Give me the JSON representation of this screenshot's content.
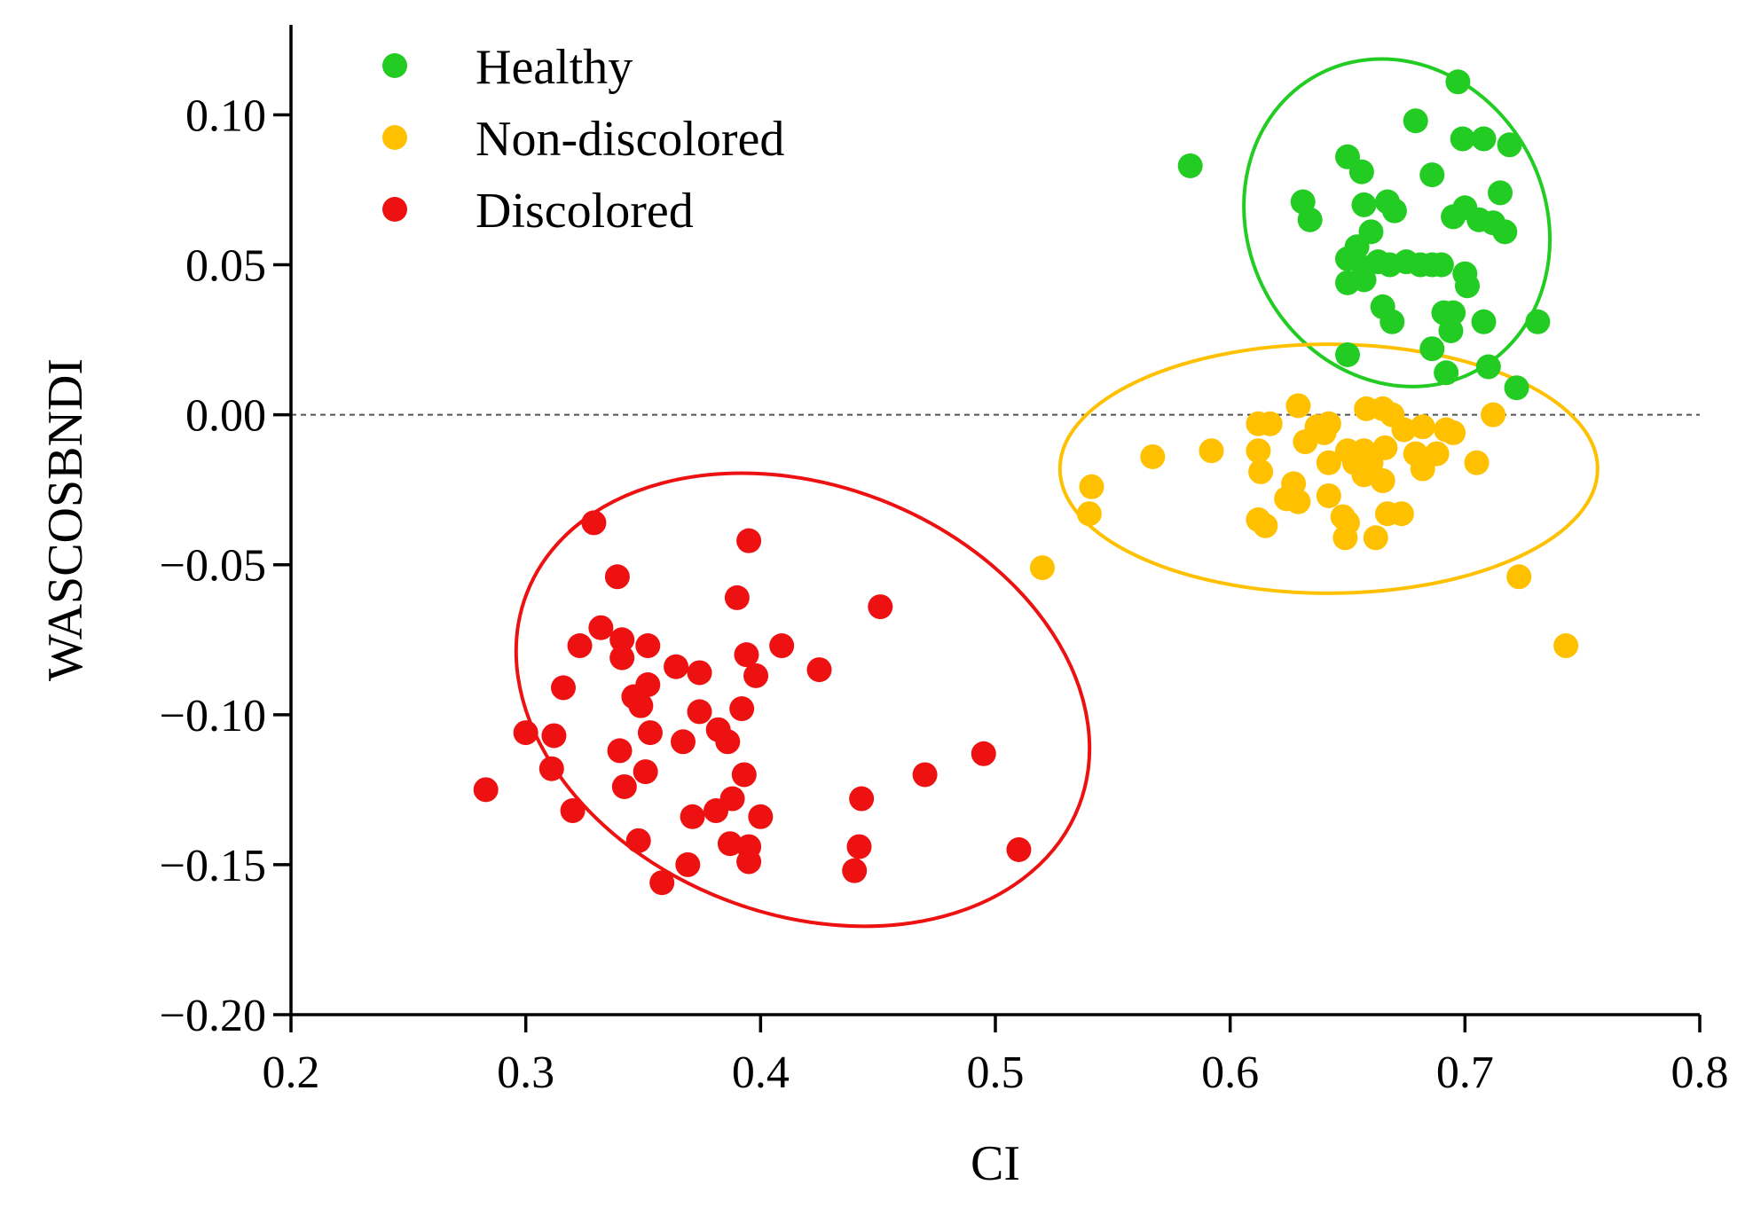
{
  "chart_data": {
    "type": "scatter",
    "xlabel": "CI",
    "ylabel": "WASCOSBNDI",
    "xlim": [
      0.2,
      0.8
    ],
    "ylim": [
      -0.2,
      0.13
    ],
    "xticks": [
      0.2,
      0.3,
      0.4,
      0.5,
      0.6,
      0.7,
      0.8
    ],
    "xtick_labels": [
      "0.2",
      "0.3",
      "0.4",
      "0.5",
      "0.6",
      "0.7",
      "0.8"
    ],
    "yticks": [
      0.1,
      0.05,
      0.0,
      -0.05,
      -0.1,
      -0.15,
      -0.2
    ],
    "ytick_labels": [
      "0.10",
      "0.05",
      "0.00",
      "−0.05",
      "−0.10",
      "−0.15",
      "−0.20"
    ],
    "reference_line_y": 0.0,
    "legend_position": "top-left",
    "series": [
      {
        "name": "Healthy",
        "color": "#22cc22",
        "ellipse": {
          "cx": 0.671,
          "cy": 0.064,
          "rx": 0.0715,
          "ry": 0.0495,
          "rotate_deg": 62
        },
        "points": [
          [
            0.583,
            0.083
          ],
          [
            0.697,
            0.111
          ],
          [
            0.679,
            0.098
          ],
          [
            0.65,
            0.086
          ],
          [
            0.656,
            0.081
          ],
          [
            0.686,
            0.08
          ],
          [
            0.699,
            0.092
          ],
          [
            0.708,
            0.092
          ],
          [
            0.719,
            0.09
          ],
          [
            0.631,
            0.071
          ],
          [
            0.634,
            0.065
          ],
          [
            0.657,
            0.07
          ],
          [
            0.667,
            0.071
          ],
          [
            0.67,
            0.068
          ],
          [
            0.7,
            0.069
          ],
          [
            0.695,
            0.066
          ],
          [
            0.706,
            0.065
          ],
          [
            0.715,
            0.074
          ],
          [
            0.712,
            0.064
          ],
          [
            0.717,
            0.061
          ],
          [
            0.66,
            0.061
          ],
          [
            0.654,
            0.056
          ],
          [
            0.65,
            0.052
          ],
          [
            0.657,
            0.049
          ],
          [
            0.663,
            0.051
          ],
          [
            0.668,
            0.05
          ],
          [
            0.675,
            0.051
          ],
          [
            0.681,
            0.05
          ],
          [
            0.686,
            0.05
          ],
          [
            0.69,
            0.05
          ],
          [
            0.7,
            0.047
          ],
          [
            0.701,
            0.043
          ],
          [
            0.65,
            0.044
          ],
          [
            0.657,
            0.045
          ],
          [
            0.665,
            0.036
          ],
          [
            0.669,
            0.031
          ],
          [
            0.691,
            0.034
          ],
          [
            0.695,
            0.034
          ],
          [
            0.694,
            0.028
          ],
          [
            0.708,
            0.031
          ],
          [
            0.731,
            0.031
          ],
          [
            0.65,
            0.02
          ],
          [
            0.686,
            0.022
          ],
          [
            0.692,
            0.014
          ],
          [
            0.71,
            0.016
          ],
          [
            0.722,
            0.009
          ]
        ]
      },
      {
        "name": "Non-discolored",
        "color": "#ffc000",
        "ellipse": {
          "cx": 0.642,
          "cy": -0.018,
          "rx": 0.1145,
          "ry": 0.0415,
          "rotate_deg": 0
        },
        "points": [
          [
            0.629,
            0.003
          ],
          [
            0.658,
            0.002
          ],
          [
            0.665,
            0.002
          ],
          [
            0.669,
            0.0
          ],
          [
            0.712,
            0.0
          ],
          [
            0.612,
            -0.003
          ],
          [
            0.617,
            -0.003
          ],
          [
            0.637,
            -0.004
          ],
          [
            0.642,
            -0.003
          ],
          [
            0.632,
            -0.009
          ],
          [
            0.64,
            -0.006
          ],
          [
            0.674,
            -0.005
          ],
          [
            0.682,
            -0.004
          ],
          [
            0.692,
            -0.005
          ],
          [
            0.695,
            -0.006
          ],
          [
            0.567,
            -0.014
          ],
          [
            0.592,
            -0.012
          ],
          [
            0.612,
            -0.012
          ],
          [
            0.642,
            -0.016
          ],
          [
            0.65,
            -0.012
          ],
          [
            0.657,
            -0.012
          ],
          [
            0.66,
            -0.016
          ],
          [
            0.666,
            -0.011
          ],
          [
            0.679,
            -0.013
          ],
          [
            0.682,
            -0.018
          ],
          [
            0.688,
            -0.013
          ],
          [
            0.705,
            -0.016
          ],
          [
            0.613,
            -0.019
          ],
          [
            0.653,
            -0.016
          ],
          [
            0.657,
            -0.02
          ],
          [
            0.665,
            -0.022
          ],
          [
            0.627,
            -0.023
          ],
          [
            0.541,
            -0.024
          ],
          [
            0.624,
            -0.028
          ],
          [
            0.629,
            -0.029
          ],
          [
            0.642,
            -0.027
          ],
          [
            0.54,
            -0.033
          ],
          [
            0.612,
            -0.035
          ],
          [
            0.615,
            -0.037
          ],
          [
            0.648,
            -0.034
          ],
          [
            0.65,
            -0.036
          ],
          [
            0.667,
            -0.033
          ],
          [
            0.673,
            -0.033
          ],
          [
            0.649,
            -0.041
          ],
          [
            0.662,
            -0.041
          ],
          [
            0.52,
            -0.051
          ],
          [
            0.723,
            -0.054
          ],
          [
            0.743,
            -0.077
          ]
        ]
      },
      {
        "name": "Discolored",
        "color": "#ee1111",
        "ellipse": {
          "cx": 0.418,
          "cy": -0.095,
          "rx": 0.126,
          "ry": 0.0715,
          "rotate_deg": 21
        },
        "points": [
          [
            0.329,
            -0.036
          ],
          [
            0.395,
            -0.042
          ],
          [
            0.339,
            -0.054
          ],
          [
            0.39,
            -0.061
          ],
          [
            0.451,
            -0.064
          ],
          [
            0.332,
            -0.071
          ],
          [
            0.323,
            -0.077
          ],
          [
            0.341,
            -0.075
          ],
          [
            0.352,
            -0.077
          ],
          [
            0.409,
            -0.077
          ],
          [
            0.341,
            -0.081
          ],
          [
            0.394,
            -0.08
          ],
          [
            0.364,
            -0.084
          ],
          [
            0.374,
            -0.086
          ],
          [
            0.398,
            -0.087
          ],
          [
            0.425,
            -0.085
          ],
          [
            0.316,
            -0.091
          ],
          [
            0.352,
            -0.09
          ],
          [
            0.346,
            -0.094
          ],
          [
            0.349,
            -0.097
          ],
          [
            0.374,
            -0.099
          ],
          [
            0.392,
            -0.098
          ],
          [
            0.3,
            -0.106
          ],
          [
            0.312,
            -0.107
          ],
          [
            0.353,
            -0.106
          ],
          [
            0.382,
            -0.105
          ],
          [
            0.386,
            -0.109
          ],
          [
            0.367,
            -0.109
          ],
          [
            0.34,
            -0.112
          ],
          [
            0.311,
            -0.118
          ],
          [
            0.351,
            -0.119
          ],
          [
            0.393,
            -0.12
          ],
          [
            0.47,
            -0.12
          ],
          [
            0.495,
            -0.113
          ],
          [
            0.283,
            -0.125
          ],
          [
            0.342,
            -0.124
          ],
          [
            0.443,
            -0.128
          ],
          [
            0.388,
            -0.128
          ],
          [
            0.32,
            -0.132
          ],
          [
            0.381,
            -0.132
          ],
          [
            0.371,
            -0.134
          ],
          [
            0.4,
            -0.134
          ],
          [
            0.348,
            -0.142
          ],
          [
            0.387,
            -0.143
          ],
          [
            0.395,
            -0.144
          ],
          [
            0.442,
            -0.144
          ],
          [
            0.395,
            -0.149
          ],
          [
            0.369,
            -0.15
          ],
          [
            0.44,
            -0.152
          ],
          [
            0.358,
            -0.156
          ],
          [
            0.51,
            -0.145
          ]
        ]
      }
    ]
  }
}
